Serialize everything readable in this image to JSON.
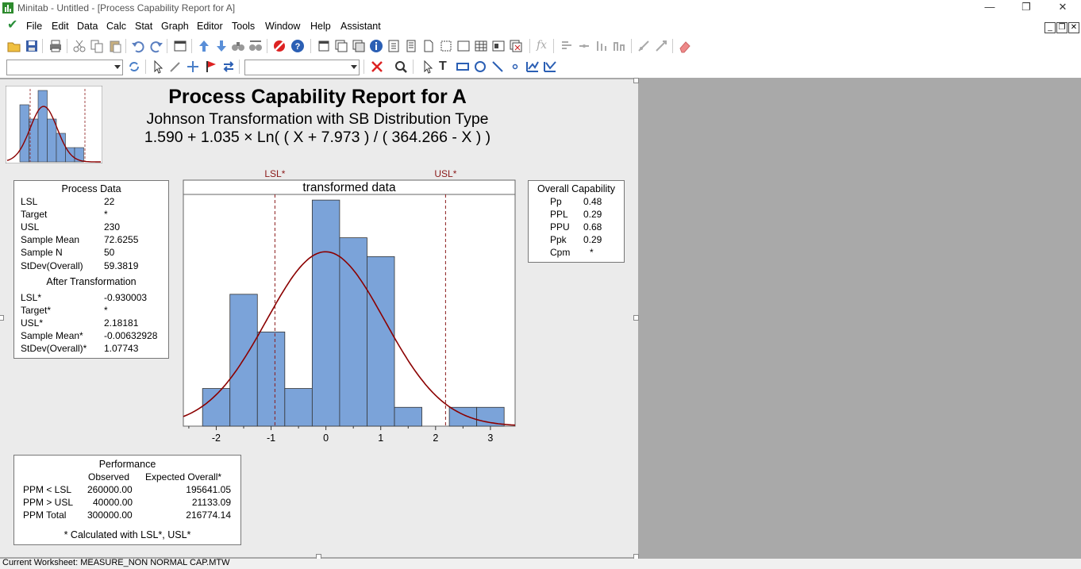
{
  "window": {
    "title": "Minitab - Untitled - [Process Capability Report for A]",
    "minimize": "—",
    "restore": "❐",
    "close": "✕"
  },
  "menu": {
    "items": [
      "File",
      "Edit",
      "Data",
      "Calc",
      "Stat",
      "Graph",
      "Editor",
      "Tools",
      "Window",
      "Help",
      "Assistant"
    ]
  },
  "toolbar": {
    "fx_label": "fx",
    "text_tool": "T"
  },
  "report": {
    "title": "Process Capability Report for A",
    "subtitle": "Johnson Transformation with SB Distribution Type",
    "formula": "1.590 + 1.035 × Ln( ( X + 7.973 ) / ( 364.266 - X ) )"
  },
  "process_data": {
    "header": "Process Data",
    "rows": [
      {
        "label": "LSL",
        "value": "22"
      },
      {
        "label": "Target",
        "value": "*"
      },
      {
        "label": "USL",
        "value": "230"
      },
      {
        "label": "Sample Mean",
        "value": "72.6255"
      },
      {
        "label": "Sample N",
        "value": "50"
      },
      {
        "label": "StDev(Overall)",
        "value": "59.3819"
      }
    ],
    "after_header": "After Transformation",
    "after_rows": [
      {
        "label": "LSL*",
        "value": "-0.930003"
      },
      {
        "label": "Target*",
        "value": "*"
      },
      {
        "label": "USL*",
        "value": "2.18181"
      },
      {
        "label": "Sample Mean*",
        "value": "-0.00632928"
      },
      {
        "label": "StDev(Overall)*",
        "value": "1.07743"
      }
    ]
  },
  "overall_capability": {
    "header": "Overall Capability",
    "rows": [
      {
        "label": "Pp",
        "value": "0.48"
      },
      {
        "label": "PPL",
        "value": "0.29"
      },
      {
        "label": "PPU",
        "value": "0.68"
      },
      {
        "label": "Ppk",
        "value": "0.29"
      },
      {
        "label": "Cpm",
        "value": "*"
      }
    ]
  },
  "performance": {
    "header": "Performance",
    "col_observed": "Observed",
    "col_expected": "Expected Overall*",
    "rows": [
      {
        "label": "PPM < LSL",
        "observed": "260000.00",
        "expected": "195641.05"
      },
      {
        "label": "PPM > USL",
        "observed": "40000.00",
        "expected": "21133.09"
      },
      {
        "label": "PPM Total",
        "observed": "300000.00",
        "expected": "216774.14"
      }
    ],
    "footnote": "* Calculated with LSL*, USL*"
  },
  "chart_data": {
    "type": "bar",
    "title": "transformed data",
    "bin_width": 0.5,
    "bin_starts": [
      -2.25,
      -1.75,
      -1.25,
      -0.75,
      -0.25,
      0.25,
      0.75,
      1.25,
      1.75,
      2.25,
      2.75
    ],
    "frequencies": [
      2,
      7,
      5,
      2,
      12,
      10,
      9,
      1,
      0,
      1,
      1
    ],
    "xlim": [
      -2.6,
      3.45
    ],
    "ylim": [
      0,
      12.3
    ],
    "xticks": [
      "-2",
      "-1",
      "0",
      "1",
      "2",
      "3"
    ],
    "lsl_label": "LSL*",
    "lsl": -0.930003,
    "usl_label": "USL*",
    "usl": 2.18181,
    "normal_mean": -0.00632928,
    "normal_sd": 1.07743,
    "bar_color": "#7ba3d9",
    "curve_color": "#8b0000"
  },
  "thumbnail": {
    "frequencies": [
      4,
      3,
      5,
      3,
      2,
      1,
      1,
      0
    ]
  },
  "status": {
    "text": "Current Worksheet: MEASURE_NON NORMAL CAP.MTW"
  }
}
